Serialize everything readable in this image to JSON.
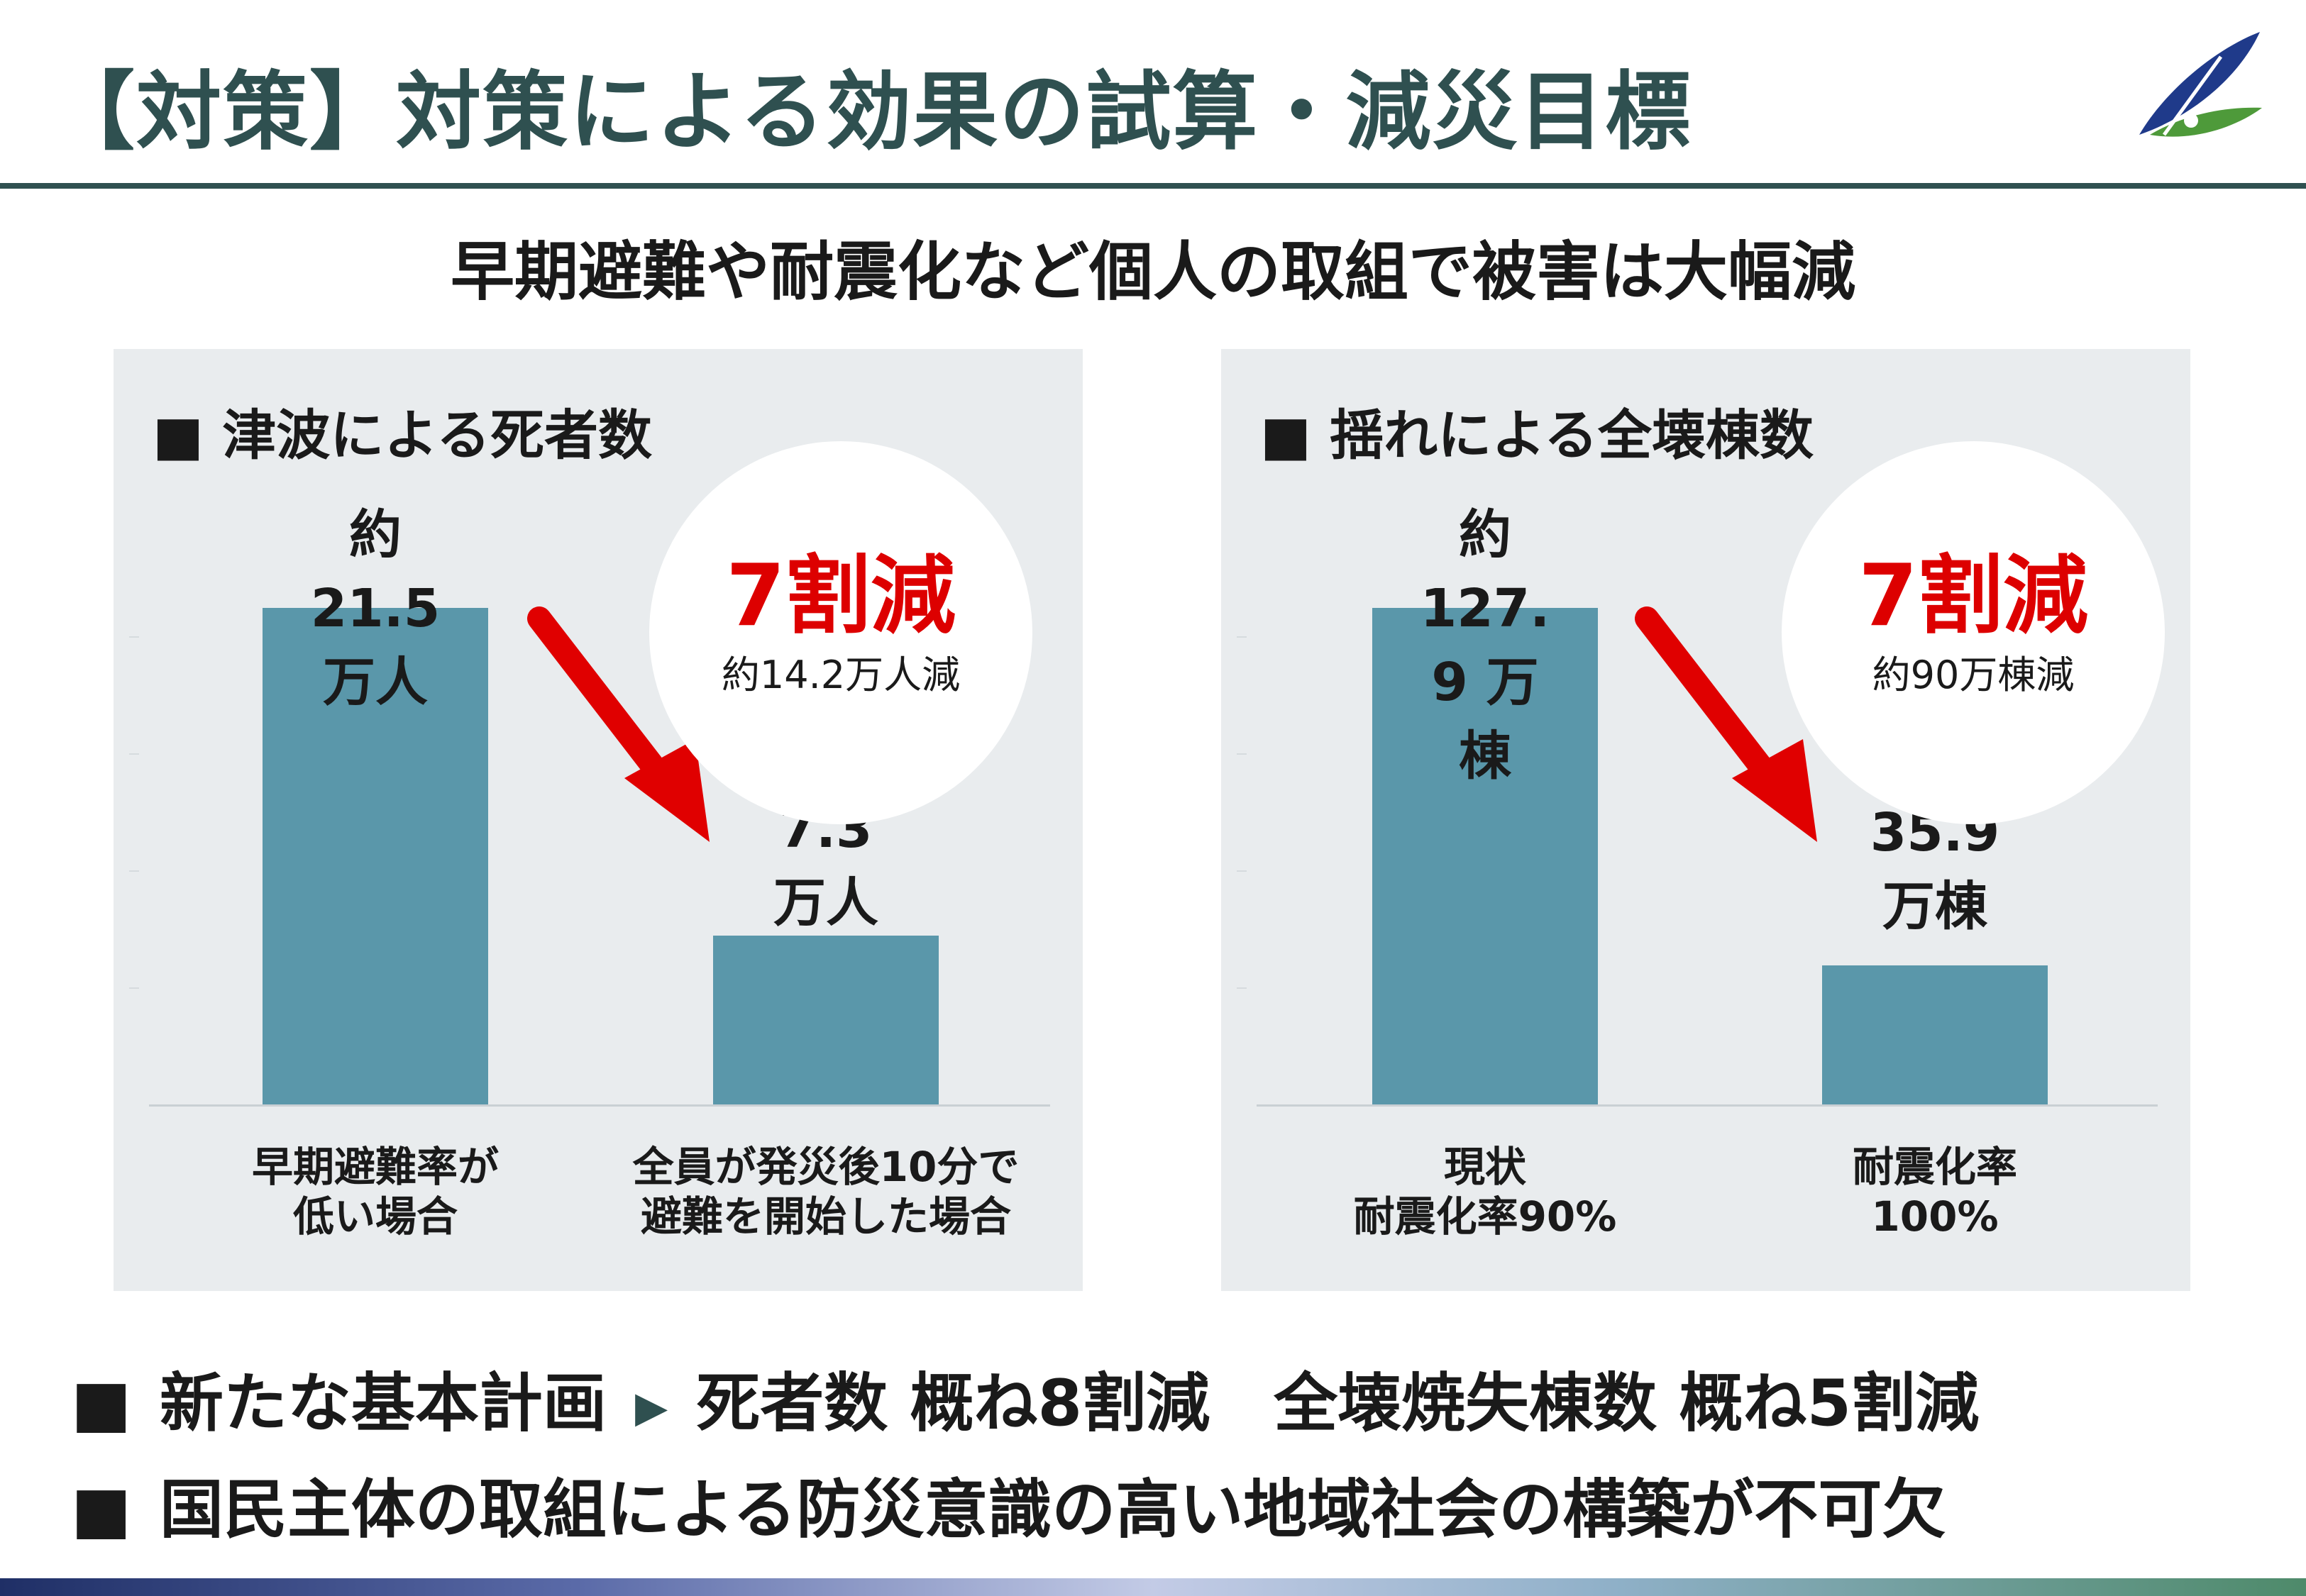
{
  "header": {
    "title": "【対策】対策による効果の試算・減災目標"
  },
  "subtitle": "早期避難や耐震化など個人の取組で被害は大幅減",
  "panels": {
    "left": {
      "title": "■ 津波による死者数",
      "bars": [
        {
          "label": "約\n21.5\n万人"
        },
        {
          "label": "7.3\n万人"
        }
      ],
      "categories": [
        "早期避難率が\n低い場合",
        "全員が発災後10分で\n避難を開始した場合"
      ],
      "badge": {
        "headline": "7割減",
        "detail": "約14.2万人減"
      }
    },
    "right": {
      "title": "■ 揺れによる全壊棟数",
      "bars": [
        {
          "label": "約\n127.\n9 万\n棟"
        },
        {
          "label": "35.9\n万棟"
        }
      ],
      "categories": [
        "現状\n耐震化率90%",
        "耐震化率\n100%"
      ],
      "badge": {
        "headline": "7割減",
        "detail": "約90万棟減"
      }
    }
  },
  "bottom": {
    "line1": {
      "bullet": "■",
      "lead": "新たな基本計画",
      "marker": "▶",
      "text": "死者数 概ね8割減　全壊焼失棟数 概ね5割減"
    },
    "line2": {
      "bullet": "■",
      "text": "国民主体の取組による防災意識の高い地域社会の構築が不可欠"
    }
  },
  "colors": {
    "bar": "#5a97aa",
    "accent_red": "#dd0000",
    "title_green": "#2f5050",
    "panel_bg": "#e9ecee"
  },
  "icons": {
    "logo": "leaf-logo-icon",
    "arrow": "down-right-arrow-icon"
  },
  "chart_data": [
    {
      "type": "bar",
      "title": "津波による死者数",
      "categories": [
        "早期避難率が低い場合",
        "全員が発災後10分で避難を開始した場合"
      ],
      "values": [
        21.5,
        7.3
      ],
      "unit": "万人",
      "annotation": "7割減 約14.2万人減",
      "ylim": [
        0,
        25
      ]
    },
    {
      "type": "bar",
      "title": "揺れによる全壊棟数",
      "categories": [
        "現状 耐震化率90%",
        "耐震化率100%"
      ],
      "values": [
        127.9,
        35.9
      ],
      "unit": "万棟",
      "annotation": "7割減 約90万棟減",
      "ylim": [
        0,
        150
      ]
    }
  ]
}
